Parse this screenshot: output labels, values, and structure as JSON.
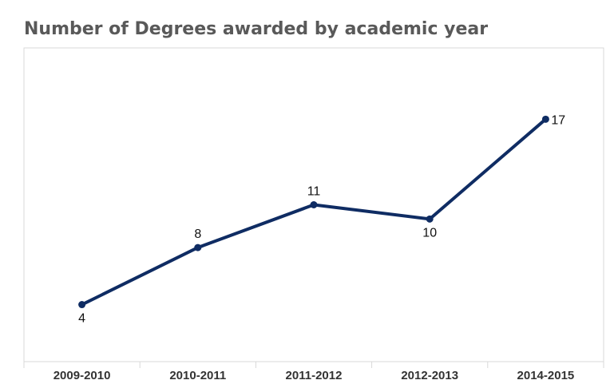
{
  "chart_data": {
    "type": "line",
    "title": "Number of Degrees awarded by academic year",
    "categories": [
      "2009-2010",
      "2010-2011",
      "2011-2012",
      "2012-2013",
      "2014-2015"
    ],
    "series": [
      {
        "values": [
          4,
          8,
          11,
          10,
          17
        ],
        "color": "#0f2c63"
      }
    ],
    "ylim": [
      0,
      22
    ],
    "grid": false,
    "legend": "none",
    "data_labels": true
  }
}
